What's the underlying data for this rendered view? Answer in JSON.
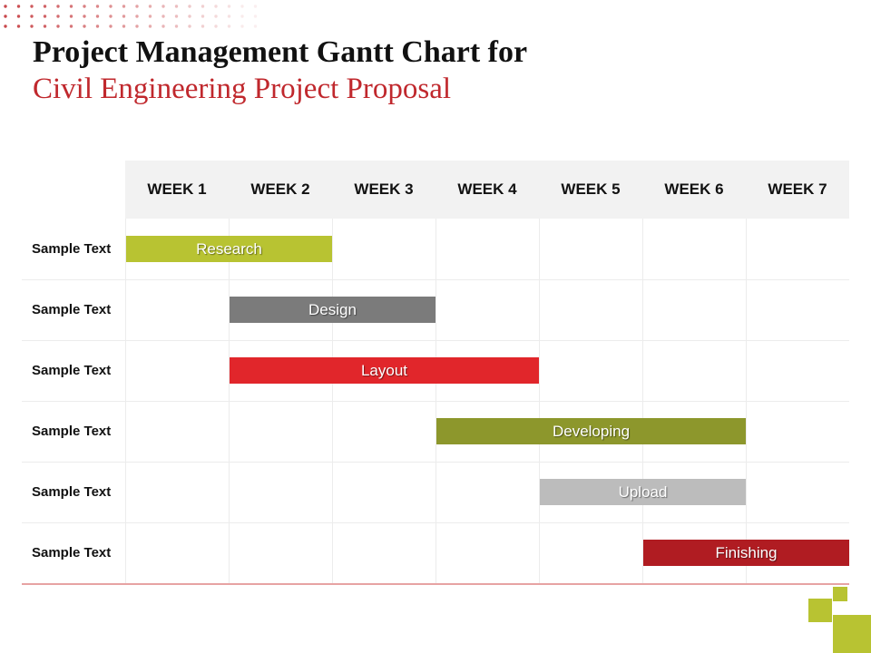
{
  "title": {
    "line1": "Project Management Gantt Chart for",
    "line2": "Civil Engineering Project Proposal",
    "line2_color": "#c0282d"
  },
  "chart_data": {
    "type": "gantt",
    "weeks": [
      "WEEK 1",
      "WEEK 2",
      "WEEK 3",
      "WEEK 4",
      "WEEK 5",
      "WEEK 6",
      "WEEK 7"
    ],
    "rows": [
      {
        "label": "Sample Text",
        "task": "Research",
        "start_week": 1,
        "end_week": 2,
        "color": "#b8c332"
      },
      {
        "label": "Sample Text",
        "task": "Design",
        "start_week": 2,
        "end_week": 3,
        "color": "#7b7b7b"
      },
      {
        "label": "Sample Text",
        "task": "Layout",
        "start_week": 2,
        "end_week": 4,
        "color": "#e1262b"
      },
      {
        "label": "Sample Text",
        "task": "Developing",
        "start_week": 4,
        "end_week": 6,
        "color": "#8d972c"
      },
      {
        "label": "Sample Text",
        "task": "Upload",
        "start_week": 5,
        "end_week": 6,
        "color": "#bcbcbc"
      },
      {
        "label": "Sample Text",
        "task": "Finishing",
        "start_week": 6,
        "end_week": 7,
        "color": "#b01c22"
      }
    ]
  },
  "colors": {
    "accent_red": "#c0282d",
    "accent_green": "#b8c332",
    "header_bg": "#f2f2f2"
  }
}
